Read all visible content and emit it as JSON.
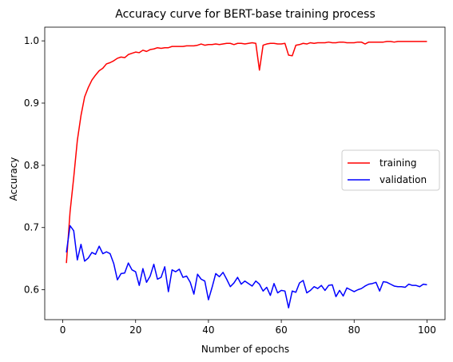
{
  "chart_data": {
    "type": "line",
    "title": "Accuracy curve for BERT-base training process",
    "xlabel": "Number of epochs",
    "ylabel": "Accuracy",
    "xlim": [
      -4.95,
      104.95
    ],
    "ylim": [
      0.552,
      1.022
    ],
    "x_ticks": [
      0,
      20,
      40,
      60,
      80,
      100
    ],
    "y_ticks": [
      0.6,
      0.7,
      0.8,
      0.9,
      1.0
    ],
    "y_tick_labels": [
      "0.6",
      "0.7",
      "0.8",
      "0.9",
      "1.0"
    ],
    "grid": false,
    "legend": "center-right",
    "x": [
      1,
      2,
      3,
      4,
      5,
      6,
      7,
      8,
      9,
      10,
      11,
      12,
      13,
      14,
      15,
      16,
      17,
      18,
      19,
      20,
      21,
      22,
      23,
      24,
      25,
      26,
      27,
      28,
      29,
      30,
      31,
      32,
      33,
      34,
      35,
      36,
      37,
      38,
      39,
      40,
      41,
      42,
      43,
      44,
      45,
      46,
      47,
      48,
      49,
      50,
      51,
      52,
      53,
      54,
      55,
      56,
      57,
      58,
      59,
      60,
      61,
      62,
      63,
      64,
      65,
      66,
      67,
      68,
      69,
      70,
      71,
      72,
      73,
      74,
      75,
      76,
      77,
      78,
      79,
      80,
      81,
      82,
      83,
      84,
      85,
      86,
      87,
      88,
      89,
      90,
      91,
      92,
      93,
      94,
      95,
      96,
      97,
      98,
      99,
      100
    ],
    "series": [
      {
        "name": "training",
        "color": "#ff0000",
        "values": [
          0.643,
          0.725,
          0.78,
          0.84,
          0.88,
          0.91,
          0.925,
          0.937,
          0.945,
          0.952,
          0.956,
          0.963,
          0.965,
          0.968,
          0.972,
          0.974,
          0.973,
          0.978,
          0.98,
          0.982,
          0.981,
          0.985,
          0.983,
          0.986,
          0.987,
          0.989,
          0.988,
          0.989,
          0.989,
          0.991,
          0.991,
          0.991,
          0.991,
          0.992,
          0.992,
          0.992,
          0.993,
          0.995,
          0.993,
          0.994,
          0.994,
          0.995,
          0.994,
          0.995,
          0.996,
          0.996,
          0.994,
          0.996,
          0.996,
          0.995,
          0.996,
          0.997,
          0.996,
          0.953,
          0.993,
          0.995,
          0.996,
          0.996,
          0.995,
          0.995,
          0.996,
          0.977,
          0.976,
          0.993,
          0.994,
          0.996,
          0.995,
          0.997,
          0.996,
          0.997,
          0.997,
          0.997,
          0.998,
          0.997,
          0.997,
          0.998,
          0.998,
          0.997,
          0.997,
          0.997,
          0.998,
          0.998,
          0.995,
          0.998,
          0.998,
          0.998,
          0.998,
          0.998,
          0.999,
          0.999,
          0.998,
          0.999,
          0.999,
          0.999,
          0.999,
          0.999,
          0.999,
          0.999,
          0.999,
          0.999
        ]
      },
      {
        "name": "validation",
        "color": "#0000ff",
        "values": [
          0.66,
          0.703,
          0.695,
          0.648,
          0.673,
          0.646,
          0.651,
          0.66,
          0.657,
          0.67,
          0.658,
          0.661,
          0.658,
          0.642,
          0.616,
          0.626,
          0.627,
          0.643,
          0.632,
          0.629,
          0.607,
          0.634,
          0.612,
          0.622,
          0.641,
          0.617,
          0.62,
          0.637,
          0.597,
          0.632,
          0.629,
          0.633,
          0.62,
          0.622,
          0.612,
          0.593,
          0.625,
          0.617,
          0.614,
          0.584,
          0.604,
          0.626,
          0.621,
          0.628,
          0.617,
          0.605,
          0.611,
          0.62,
          0.609,
          0.614,
          0.61,
          0.606,
          0.614,
          0.609,
          0.598,
          0.604,
          0.591,
          0.61,
          0.595,
          0.599,
          0.598,
          0.571,
          0.598,
          0.596,
          0.611,
          0.615,
          0.595,
          0.599,
          0.605,
          0.602,
          0.607,
          0.599,
          0.607,
          0.608,
          0.589,
          0.599,
          0.59,
          0.603,
          0.6,
          0.597,
          0.6,
          0.602,
          0.606,
          0.609,
          0.61,
          0.612,
          0.598,
          0.613,
          0.612,
          0.609,
          0.606,
          0.605,
          0.605,
          0.604,
          0.609,
          0.607,
          0.607,
          0.605,
          0.609,
          0.608
        ]
      }
    ]
  }
}
